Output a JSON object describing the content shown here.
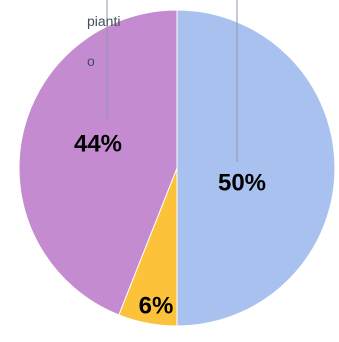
{
  "chart_data": {
    "type": "pie",
    "slices": [
      {
        "label": "50%",
        "value": 50,
        "color": "#a9c1ef"
      },
      {
        "label": "6%",
        "value": 6,
        "color": "#fcc33a"
      },
      {
        "label": "44%",
        "value": 44,
        "color": "#c48bd0"
      }
    ],
    "visible_text": [
      "pianti",
      "o"
    ],
    "label_color": "#000000",
    "leader_color": "#8f96a8"
  }
}
